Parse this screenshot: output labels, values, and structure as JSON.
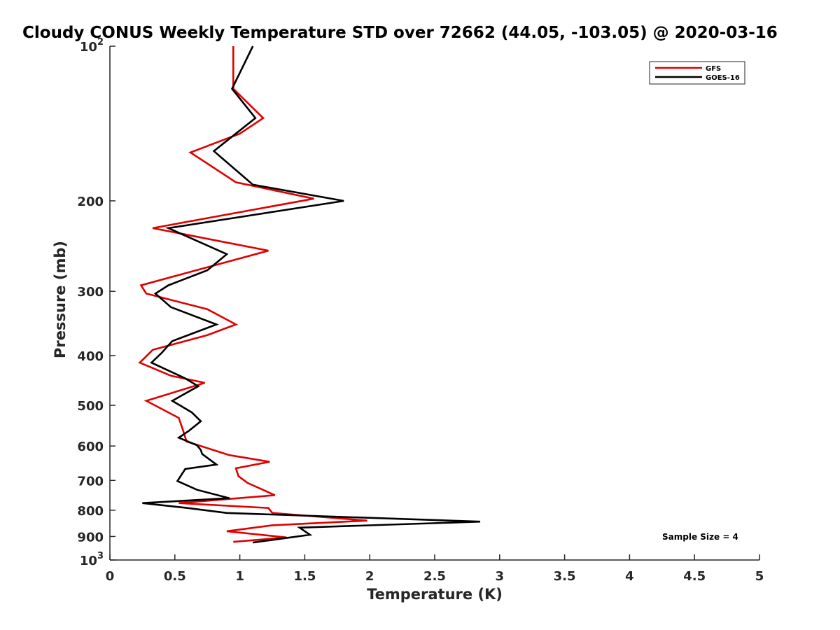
{
  "chart_data": {
    "type": "line",
    "title": "Cloudy CONUS Weekly Temperature STD over 72662 (44.05, -103.05) @ 2020-03-16",
    "xlabel": "Temperature (K)",
    "ylabel": "Pressure (mb)",
    "xlim": [
      0,
      5
    ],
    "ylim": [
      100,
      1000
    ],
    "y_scale": "log",
    "y_reversed": true,
    "x_ticks": [
      "0",
      "0.5",
      "1",
      "1.5",
      "2",
      "2.5",
      "3",
      "3.5",
      "4",
      "4.5",
      "5"
    ],
    "y_ticks": [
      {
        "base": "10",
        "exp": "2"
      },
      {
        "text": "200"
      },
      {
        "text": "300"
      },
      {
        "text": "400"
      },
      {
        "text": "500"
      },
      {
        "text": "600"
      },
      {
        "text": "700"
      },
      {
        "text": "800"
      },
      {
        "text": "900"
      },
      {
        "base": "10",
        "exp": "3"
      }
    ],
    "grid": false,
    "legend_position": "top-right",
    "annotation": "Sample Size = 4",
    "series": [
      {
        "name": "GFS",
        "color": "#e00000",
        "points": [
          [
            0.95,
            100
          ],
          [
            0.95,
            121
          ],
          [
            1.18,
            138
          ],
          [
            1.0,
            148
          ],
          [
            0.62,
            161
          ],
          [
            0.97,
            184
          ],
          [
            1.57,
            198
          ],
          [
            0.33,
            226
          ],
          [
            1.22,
            250
          ],
          [
            0.55,
            278
          ],
          [
            0.24,
            292
          ],
          [
            0.28,
            303
          ],
          [
            0.75,
            325
          ],
          [
            0.97,
            348
          ],
          [
            0.75,
            365
          ],
          [
            0.33,
            390
          ],
          [
            0.23,
            413
          ],
          [
            0.47,
            438
          ],
          [
            0.73,
            452
          ],
          [
            0.28,
            490
          ],
          [
            0.53,
            529
          ],
          [
            0.56,
            556
          ],
          [
            0.59,
            588
          ],
          [
            0.92,
            625
          ],
          [
            1.23,
            644
          ],
          [
            0.97,
            663
          ],
          [
            0.99,
            687
          ],
          [
            1.06,
            708
          ],
          [
            1.27,
            748
          ],
          [
            0.53,
            775
          ],
          [
            1.22,
            792
          ],
          [
            1.25,
            810
          ],
          [
            1.98,
            838
          ],
          [
            1.25,
            856
          ],
          [
            0.9,
            879
          ],
          [
            1.36,
            904
          ],
          [
            0.95,
            922
          ]
        ]
      },
      {
        "name": "GOES-16",
        "color": "#000000",
        "points": [
          [
            1.1,
            100
          ],
          [
            0.94,
            121
          ],
          [
            1.12,
            138
          ],
          [
            0.8,
            160
          ],
          [
            1.1,
            186
          ],
          [
            1.8,
            200
          ],
          [
            0.45,
            226
          ],
          [
            0.9,
            254
          ],
          [
            0.75,
            273
          ],
          [
            0.45,
            292
          ],
          [
            0.35,
            303
          ],
          [
            0.47,
            322
          ],
          [
            0.82,
            348
          ],
          [
            0.48,
            375
          ],
          [
            0.4,
            395
          ],
          [
            0.32,
            413
          ],
          [
            0.58,
            443
          ],
          [
            0.68,
            459
          ],
          [
            0.48,
            490
          ],
          [
            0.63,
            516
          ],
          [
            0.7,
            537
          ],
          [
            0.61,
            560
          ],
          [
            0.53,
            578
          ],
          [
            0.67,
            598
          ],
          [
            0.7,
            611
          ],
          [
            0.71,
            622
          ],
          [
            0.82,
            652
          ],
          [
            0.58,
            665
          ],
          [
            0.52,
            702
          ],
          [
            0.67,
            730
          ],
          [
            0.92,
            758
          ],
          [
            0.25,
            775
          ],
          [
            0.58,
            791
          ],
          [
            0.9,
            810
          ],
          [
            2.85,
            842
          ],
          [
            1.46,
            865
          ],
          [
            1.54,
            893
          ],
          [
            1.1,
            925
          ]
        ]
      }
    ]
  }
}
